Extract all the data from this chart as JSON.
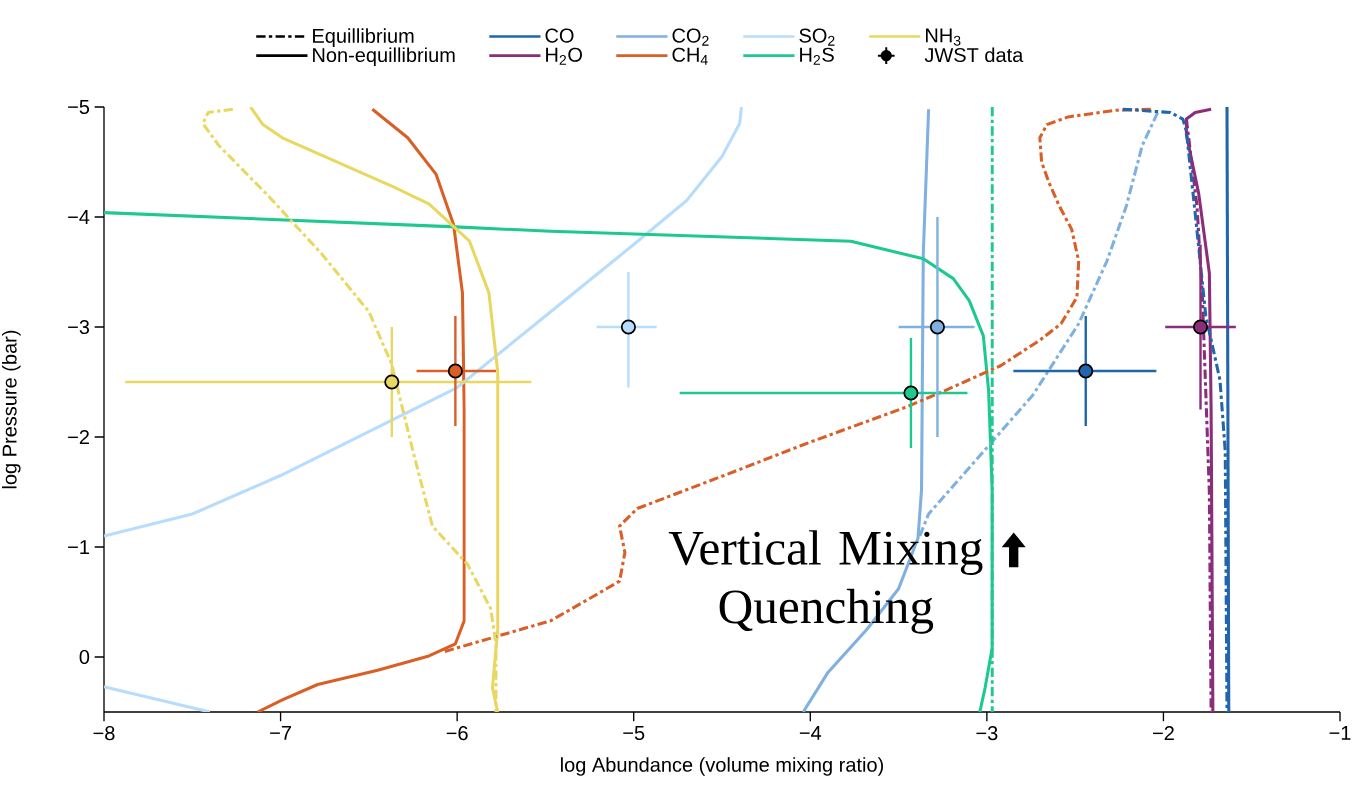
{
  "chart_data": {
    "type": "line",
    "xlabel": "log Abundance (volume mixing ratio)",
    "ylabel": "log Pressure (bar)",
    "xlim": [
      -8,
      -1
    ],
    "ylim": [
      0.5,
      -5
    ],
    "xticks": [
      {
        "value": -8,
        "label": "−8"
      },
      {
        "value": -7,
        "label": "−7"
      },
      {
        "value": -6,
        "label": "−6"
      },
      {
        "value": -5,
        "label": "−5"
      },
      {
        "value": -4,
        "label": "−4"
      },
      {
        "value": -3,
        "label": "−3"
      },
      {
        "value": -2,
        "label": "−2"
      },
      {
        "value": -1,
        "label": "−1"
      }
    ],
    "yticks": [
      {
        "value": -5,
        "label": "−5"
      },
      {
        "value": -4,
        "label": "−4"
      },
      {
        "value": -3,
        "label": "−3"
      },
      {
        "value": -2,
        "label": "−2"
      },
      {
        "value": -1,
        "label": "−1"
      },
      0
    ],
    "legend": "top",
    "annotations": [
      "Vertical Mixing Quenching"
    ],
    "series": [
      {
        "name": "Equillibrium",
        "color": "#000000",
        "line_style": "dashdot"
      },
      {
        "name": "Non-equillibrium",
        "color": "#000000",
        "line_style": "solid"
      },
      {
        "name": "CO",
        "color": "#2166ac",
        "line_style": "solid",
        "x": [
          -1.64,
          -1.63
        ],
        "values": [
          -5,
          0.5
        ]
      },
      {
        "name": "H$_{2}$O",
        "color": "#8c2d7a",
        "line_style": "solid",
        "x": [
          -1.73,
          -1.82,
          -1.87,
          -1.87,
          -1.8,
          -1.74,
          -1.73,
          -1.72
        ],
        "values": [
          -4.98,
          -4.95,
          -4.89,
          -4.75,
          -4.21,
          -3.49,
          -2.24,
          0.5
        ]
      },
      {
        "name": "CO$_{2}$",
        "color": "#7fb0e0",
        "line_style": "solid",
        "x": [
          -3.33,
          -3.36,
          -3.37,
          -3.39,
          -3.5,
          -3.68,
          -3.9,
          -4.04
        ],
        "values": [
          -4.98,
          -3.67,
          -1.52,
          -1.08,
          -0.62,
          -0.25,
          0.14,
          0.5
        ]
      },
      {
        "name": "CH$_{4}$",
        "color": "#d95f27",
        "line_style": "solid",
        "x": [
          -6.48,
          -6.28,
          -6.12,
          -6.02,
          -5.97,
          -5.96,
          -5.96,
          -6.01,
          -6.16,
          -6.45,
          -6.79,
          -6.99,
          -7.13
        ],
        "values": [
          -4.98,
          -4.72,
          -4.39,
          -3.93,
          -3.31,
          -2.24,
          -0.33,
          -0.12,
          -0.01,
          0.12,
          0.25,
          0.39,
          0.5
        ]
      },
      {
        "name": "SO$_{2}$",
        "color": "#b8dcfb",
        "line_style": "solid",
        "x": [
          -8,
          -7.5,
          -7,
          -6.5,
          -6,
          -5.5,
          -5,
          -4.7,
          -4.5,
          -4.4,
          -4.39
        ],
        "values": [
          -1.1,
          -1.3,
          -1.65,
          -2.05,
          -2.45,
          -3.1,
          -3.75,
          -4.15,
          -4.55,
          -4.85,
          -5
        ]
      },
      {
        "name": "H$_{2}$S",
        "color": "#1ec88f",
        "line_style": "solid",
        "x": [
          -8,
          -6.01,
          -5.47,
          -3.77,
          -3.36,
          -3.19,
          -3.1,
          -3.02,
          -2.99,
          -2.97,
          -2.97,
          -3.01,
          -3.04
        ],
        "values": [
          -4.04,
          -3.91,
          -3.87,
          -3.78,
          -3.62,
          -3.44,
          -3.24,
          -2.92,
          -2.42,
          -1.52,
          -0.08,
          0.28,
          0.5
        ]
      },
      {
        "name": "NH$_{3}$",
        "color": "#e8d862",
        "line_style": "solid",
        "x": [
          -7.17,
          -7.1,
          -6.99,
          -6.37,
          -6.16,
          -5.93,
          -5.82,
          -5.77,
          -5.77,
          -5.8,
          -5.77
        ],
        "values": [
          -5,
          -4.84,
          -4.72,
          -4.28,
          -4.12,
          -3.78,
          -3.31,
          -2.59,
          -0.25,
          0.28,
          0.5
        ]
      },
      {
        "name": "JWST data",
        "type": "scatter",
        "color": "#000000",
        "marker": "circle",
        "colors": [
          "#e8d862",
          "#d95f27",
          "#b8dcfb",
          "#1ec88f",
          "#7fb0e0",
          "#2166ac",
          "#8c2d7a"
        ],
        "x": [
          -6.37,
          -6.01,
          -5.03,
          -3.43,
          -3.28,
          -2.44,
          -1.79
        ],
        "values": [
          -2.5,
          -2.6,
          -3.0,
          -2.4,
          -3.0,
          -2.6,
          -3.0
        ],
        "xerrors": [
          [
            -7.88,
            -5.58
          ],
          [
            -6.23,
            -5.78
          ],
          [
            -5.21,
            -4.87
          ],
          [
            -4.74,
            -3.11
          ],
          [
            -3.5,
            -3.07
          ],
          [
            -2.85,
            -2.04
          ],
          [
            -1.99,
            -1.59
          ]
        ],
        "errors": [
          [
            -3.0,
            -2.0
          ],
          [
            -3.1,
            -2.1
          ],
          [
            -3.5,
            -2.45
          ],
          [
            -2.9,
            -1.9
          ],
          [
            -4.0,
            -2.0
          ],
          [
            -3.1,
            -2.1
          ],
          [
            -3.75,
            -2.25
          ]
        ]
      },
      {
        "color": "#b8dcfb",
        "line_style": "solid",
        "x": [
          -8,
          -7.4
        ],
        "values": [
          0.27,
          0.5
        ]
      },
      {
        "color": "#8c2d7a",
        "line_style": "dashdot",
        "x": [
          -1.87,
          -1.81,
          -1.78,
          -1.76,
          -1.74,
          -1.73
        ],
        "values": [
          -4.89,
          -4.1,
          -3.3,
          -2.4,
          -1.5,
          0.5
        ]
      },
      {
        "color": "#7fb0e0",
        "line_style": "dashdot",
        "x": [
          -3.38,
          -3.33,
          -2.92,
          -2.74,
          -2.48,
          -2.32,
          -2.21,
          -2.12,
          -2.03
        ],
        "values": [
          -1.1,
          -1.3,
          -2.05,
          -2.38,
          -3.03,
          -3.6,
          -4.1,
          -4.65,
          -4.96
        ]
      },
      {
        "color": "#d95f27",
        "line_style": "dashdot",
        "x": [
          -6.07,
          -5.47,
          -5.23,
          -5.08,
          -5.05,
          -5.08,
          -4.98,
          -4.44,
          -4.04,
          -3.46,
          -3.24,
          -2.92,
          -2.7,
          -2.58,
          -2.49,
          -2.48,
          -2.52,
          -2.59,
          -2.65,
          -2.69,
          -2.7,
          -2.66,
          -2.54,
          -2.27,
          -2.07
        ],
        "values": [
          -0.05,
          -0.33,
          -0.55,
          -0.69,
          -0.95,
          -1.19,
          -1.35,
          -1.68,
          -1.93,
          -2.27,
          -2.42,
          -2.65,
          -2.88,
          -3.03,
          -3.27,
          -3.6,
          -3.89,
          -4.1,
          -4.32,
          -4.5,
          -4.72,
          -4.84,
          -4.91,
          -4.97,
          -4.98
        ]
      },
      {
        "color": "#2166ac",
        "line_style": "dashdot",
        "x": [
          -2.23,
          -1.96,
          -1.89,
          -1.87,
          -1.82,
          -1.76,
          -1.68,
          -1.65,
          -1.64
        ],
        "values": [
          -4.98,
          -4.95,
          -4.89,
          -4.78,
          -4.03,
          -3.1,
          -2.52,
          -1.87,
          0.5
        ]
      },
      {
        "color": "#1ec88f",
        "line_style": "dashdot",
        "x": [
          -2.97,
          -2.97
        ],
        "values": [
          -5,
          0.5
        ]
      },
      {
        "color": "#e8d862",
        "line_style": "dashdot",
        "x": [
          -7.27,
          -7.41,
          -7.44,
          -7.35,
          -7.08,
          -6.77,
          -6.5,
          -6.37,
          -6.25,
          -6.14,
          -5.94,
          -5.81,
          -5.78,
          -5.78
        ],
        "values": [
          -4.98,
          -4.95,
          -4.85,
          -4.65,
          -4.21,
          -3.67,
          -3.14,
          -2.66,
          -1.87,
          -1.19,
          -0.84,
          -0.44,
          -0.12,
          0.5
        ]
      }
    ]
  }
}
